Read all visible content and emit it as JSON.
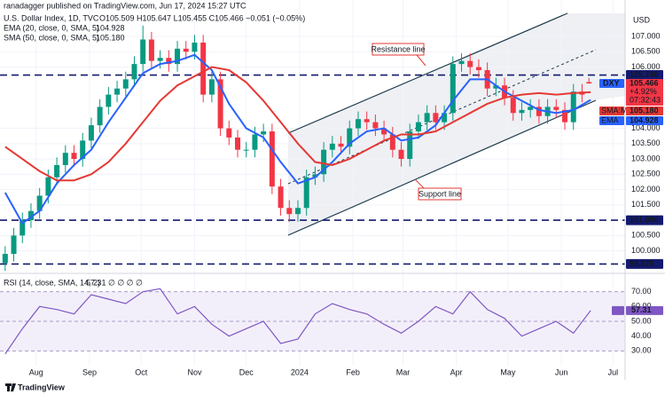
{
  "chart_data": {
    "type": "candlestick",
    "publisher": "ranadagger published on TradingView.com, Jun 17, 2024 15:27 UTC",
    "title": "U.S. Dollar Index, 1D, TVC",
    "ohlc_text": "O105.509 H105.647 L105.455 C105.466 −0.051 (−0.05%)",
    "currency": "USD",
    "symbol": "DXY",
    "last_price_label": "105.466",
    "change_label": "+4.92%",
    "countdown": "07:32:43",
    "brand": "TradingView",
    "annotations": [
      "Resistance line",
      "Support line"
    ],
    "xlim": [
      -3,
      360
    ],
    "xticks": [
      {
        "value": 18,
        "label": "Aug"
      },
      {
        "value": 49,
        "label": "Sep"
      },
      {
        "value": 79,
        "label": "Oct"
      },
      {
        "value": 110,
        "label": "Nov"
      },
      {
        "value": 140,
        "label": "Dec"
      },
      {
        "value": 171,
        "label": "2024"
      },
      {
        "value": 202,
        "label": "Feb"
      },
      {
        "value": 231,
        "label": "Mar"
      },
      {
        "value": 262,
        "label": "Apr"
      },
      {
        "value": 292,
        "label": "May"
      },
      {
        "value": 323,
        "label": "Jun"
      },
      {
        "value": 353,
        "label": "Jul"
      }
    ],
    "ylim": [
      99.35,
      107.9
    ],
    "yticks": [
      {
        "value": 107,
        "label": "107.000"
      },
      {
        "value": 106.5,
        "label": "106.500"
      },
      {
        "value": 106,
        "label": "106.000"
      },
      {
        "value": 104,
        "label": "104.000"
      },
      {
        "value": 103.5,
        "label": "103.500"
      },
      {
        "value": 103,
        "label": "103.000"
      },
      {
        "value": 102.5,
        "label": "102.500"
      },
      {
        "value": 102,
        "label": "102.000"
      },
      {
        "value": 101.5,
        "label": "101.500"
      },
      {
        "value": 100.5,
        "label": "100.500"
      },
      {
        "value": 100,
        "label": "100.000"
      }
    ],
    "levels": [
      {
        "value": 105.74,
        "label": "105.740"
      },
      {
        "value": 101,
        "label": "101.000"
      },
      {
        "value": 99.57,
        "label": "99.570"
      }
    ],
    "level_color": "#131a6e",
    "candles": {
      "up_color": "#089981",
      "down_color": "#f23645",
      "x": [
        0,
        5,
        10,
        15,
        20,
        25,
        30,
        35,
        40,
        45,
        50,
        55,
        60,
        65,
        70,
        75,
        80,
        85,
        90,
        95,
        100,
        105,
        110,
        115,
        120,
        125,
        130,
        135,
        140,
        145,
        150,
        155,
        160,
        165,
        170,
        175,
        180,
        185,
        190,
        195,
        200,
        205,
        210,
        215,
        220,
        225,
        230,
        235,
        240,
        245,
        250,
        255,
        260,
        265,
        270,
        275,
        280,
        285,
        290,
        295,
        300,
        305,
        310,
        315,
        320,
        325,
        330,
        335,
        339
      ],
      "open": [
        99.6,
        99.9,
        100.5,
        101.0,
        101.3,
        101.8,
        102.4,
        102.8,
        103.2,
        103.0,
        103.6,
        104.1,
        104.7,
        105.1,
        105.3,
        105.6,
        106.1,
        106.9,
        106.2,
        106.3,
        106.1,
        106.6,
        106.5,
        106.8,
        105.1,
        105.6,
        104.0,
        103.7,
        103.3,
        103.3,
        103.8,
        103.9,
        102.1,
        101.4,
        101.2,
        101.4,
        102.4,
        102.5,
        103.3,
        103.5,
        103.4,
        104.0,
        104.3,
        104.2,
        104.0,
        103.8,
        103.3,
        103.0,
        103.9,
        104.2,
        104.5,
        104.2,
        104.5,
        106.1,
        106.2,
        106.0,
        105.9,
        105.3,
        105.4,
        105.0,
        104.5,
        104.6,
        104.7,
        104.4,
        104.7,
        104.6,
        104.2,
        105.2,
        105.509
      ],
      "high": [
        100.15,
        100.75,
        101.25,
        101.55,
        102.05,
        102.65,
        103.05,
        103.45,
        103.45,
        103.85,
        104.35,
        104.95,
        105.35,
        105.55,
        105.85,
        106.35,
        107.35,
        107.15,
        106.55,
        106.55,
        106.85,
        106.85,
        107.05,
        107.05,
        105.85,
        105.85,
        104.25,
        103.95,
        103.55,
        104.05,
        104.15,
        104.15,
        102.35,
        101.65,
        101.65,
        102.65,
        102.75,
        103.55,
        103.75,
        103.75,
        104.25,
        104.55,
        104.55,
        104.45,
        104.25,
        104.05,
        103.55,
        104.15,
        104.45,
        104.75,
        104.75,
        104.75,
        106.35,
        106.45,
        106.45,
        106.25,
        106.15,
        105.65,
        105.65,
        105.25,
        104.85,
        104.95,
        104.95,
        104.95,
        104.95,
        104.85,
        105.45,
        105.45,
        105.647
      ],
      "low": [
        99.35,
        99.65,
        100.25,
        100.75,
        101.05,
        101.55,
        102.15,
        102.55,
        102.75,
        102.75,
        103.35,
        103.85,
        104.45,
        104.85,
        105.05,
        105.35,
        105.85,
        105.95,
        105.95,
        105.85,
        105.85,
        106.25,
        106.25,
        104.85,
        104.85,
        103.75,
        103.45,
        103.05,
        103.05,
        103.05,
        103.55,
        101.85,
        101.15,
        100.95,
        100.95,
        101.15,
        102.15,
        102.25,
        103.05,
        103.15,
        103.15,
        103.75,
        103.95,
        103.75,
        103.55,
        103.05,
        102.75,
        102.75,
        103.65,
        103.95,
        103.95,
        103.95,
        104.25,
        105.85,
        105.75,
        105.65,
        105.05,
        105.05,
        104.75,
        104.25,
        104.25,
        104.35,
        104.15,
        104.15,
        104.35,
        103.95,
        103.95,
        104.85,
        105.455
      ],
      "close": [
        99.9,
        100.5,
        101.0,
        101.3,
        101.8,
        102.4,
        102.8,
        103.2,
        103.0,
        103.6,
        104.1,
        104.7,
        105.1,
        105.3,
        105.6,
        106.1,
        106.9,
        106.2,
        106.3,
        106.1,
        106.6,
        106.5,
        106.8,
        105.1,
        105.6,
        104.0,
        103.7,
        103.3,
        103.3,
        103.8,
        103.9,
        102.1,
        101.4,
        101.2,
        101.4,
        102.4,
        102.5,
        103.3,
        103.5,
        103.4,
        104.0,
        104.3,
        104.2,
        104.0,
        103.8,
        103.3,
        103.0,
        103.9,
        104.2,
        104.5,
        104.2,
        104.5,
        106.1,
        106.2,
        106.0,
        105.9,
        105.3,
        105.4,
        105.0,
        104.5,
        104.6,
        104.7,
        104.4,
        104.7,
        104.6,
        104.2,
        105.2,
        105.1,
        105.466
      ]
    },
    "indicator_x": [
      0,
      10,
      20,
      30,
      40,
      50,
      60,
      70,
      80,
      90,
      100,
      110,
      120,
      130,
      140,
      150,
      160,
      170,
      180,
      190,
      200,
      210,
      220,
      230,
      240,
      250,
      260,
      270,
      280,
      290,
      300,
      310,
      320,
      330,
      340
    ],
    "series": [
      {
        "name": "EMA",
        "legend": "EMA (20, close, 0, SMA, 5)",
        "color": "#2962ff",
        "value_label": "104.928",
        "values": [
          101.9,
          100.9,
          101.3,
          102.2,
          102.8,
          103.3,
          104.2,
          105.0,
          105.8,
          106.1,
          106.2,
          106.4,
          105.9,
          104.8,
          104.0,
          103.7,
          102.9,
          102.2,
          102.4,
          102.9,
          103.5,
          103.9,
          104.0,
          103.6,
          103.7,
          104.1,
          104.9,
          105.6,
          105.6,
          105.2,
          104.9,
          104.6,
          104.5,
          104.6,
          104.928
        ]
      },
      {
        "name": "SMA:MA",
        "legend": "SMA (50, close, 0, SMA, 5)",
        "color": "#e53935",
        "value_label": "105.180",
        "values": [
          103.4,
          103.0,
          102.6,
          102.3,
          102.3,
          102.5,
          102.9,
          103.5,
          104.2,
          104.9,
          105.4,
          105.7,
          106.0,
          105.9,
          105.5,
          104.9,
          104.2,
          103.5,
          102.9,
          102.8,
          103.0,
          103.3,
          103.6,
          103.8,
          103.8,
          103.9,
          104.2,
          104.5,
          104.8,
          105.0,
          105.1,
          105.15,
          105.1,
          105.15,
          105.18
        ]
      }
    ],
    "rsi": {
      "legend": "RSI (14, close, SMA, 14, 2)",
      "flags": "∅ ∅ ∅ ∅",
      "color": "#7e57c2",
      "value_label": "57.31",
      "ylim": [
        20,
        80
      ],
      "yticks": [
        {
          "value": 70,
          "label": "70.00"
        },
        {
          "value": 60,
          "label": "60.00"
        },
        {
          "value": 50,
          "label": "50.00"
        },
        {
          "value": 40,
          "label": "40.00"
        },
        {
          "value": 30,
          "label": "30.00"
        }
      ],
      "values": [
        28,
        45,
        60,
        58,
        55,
        68,
        65,
        62,
        70,
        72,
        55,
        60,
        48,
        40,
        45,
        50,
        35,
        38,
        55,
        62,
        58,
        55,
        48,
        42,
        50,
        60,
        55,
        70,
        58,
        52,
        40,
        45,
        50,
        42,
        57.31
      ]
    }
  }
}
